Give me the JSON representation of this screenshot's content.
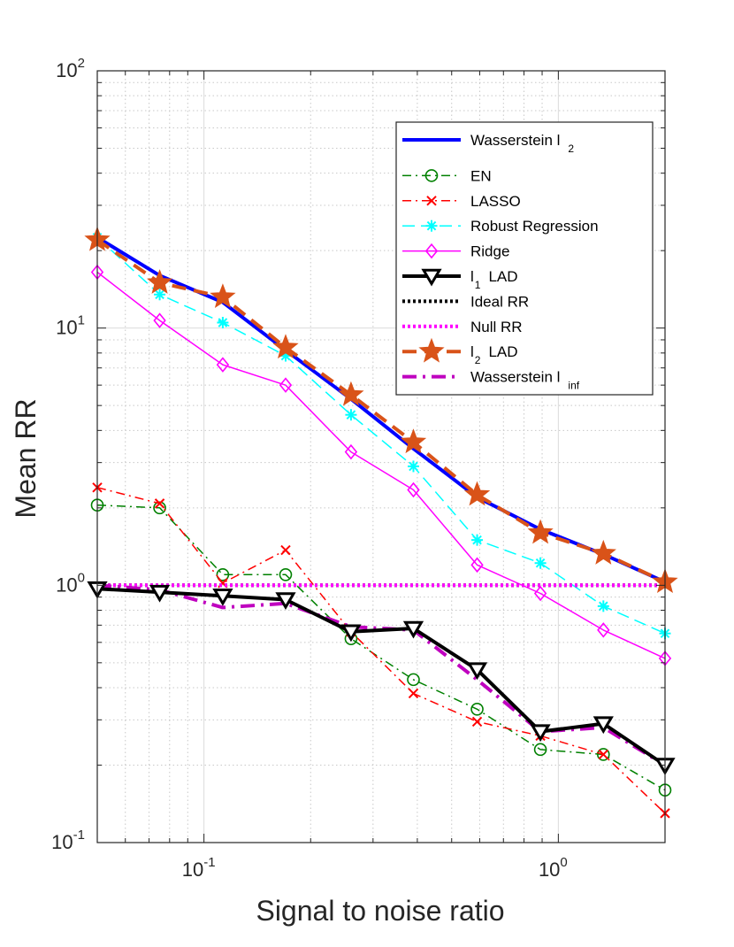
{
  "chart_data": {
    "type": "line",
    "xscale": "log",
    "yscale": "log",
    "xlabel": "Signal to noise ratio",
    "ylabel": "Mean RR",
    "xlim": [
      0.05,
      2.0
    ],
    "ylim": [
      0.1,
      100
    ],
    "grid": true,
    "minor_grid": true,
    "legend_position": "top-right",
    "x_ticks": [
      {
        "value": 0.1,
        "base": "10",
        "exp": "-1"
      },
      {
        "value": 1,
        "base": "10",
        "exp": "0"
      }
    ],
    "y_ticks": [
      {
        "value": 0.1,
        "base": "10",
        "exp": "-1"
      },
      {
        "value": 1,
        "base": "10",
        "exp": "0"
      },
      {
        "value": 10,
        "base": "10",
        "exp": "1"
      },
      {
        "value": 100,
        "base": "10",
        "exp": "2"
      }
    ],
    "x": [
      0.05,
      0.075,
      0.113,
      0.17,
      0.26,
      0.39,
      0.59,
      0.89,
      1.34,
      2.0
    ],
    "series": [
      {
        "name": "Wasserstein l",
        "sub": "2",
        "color": "#0000ff",
        "style": "solid",
        "marker": "none",
        "lineWidth": 4,
        "values": [
          22.5,
          16.0,
          12.6,
          8.2,
          5.3,
          3.4,
          2.2,
          1.65,
          1.32,
          1.03
        ]
      },
      {
        "name": "EN",
        "sub": "",
        "color": "#008000",
        "style": "dashdot",
        "marker": "circle",
        "lineWidth": 1.5,
        "values": [
          2.05,
          2.0,
          1.1,
          1.1,
          0.62,
          0.43,
          0.33,
          0.23,
          0.22,
          0.16
        ]
      },
      {
        "name": "LASSO",
        "sub": "",
        "color": "#ff0000",
        "style": "dashdot",
        "marker": "x",
        "lineWidth": 1.5,
        "values": [
          2.4,
          2.08,
          1.02,
          1.37,
          0.66,
          0.38,
          0.295,
          0.26,
          0.22,
          0.13
        ]
      },
      {
        "name": "Robust Regression",
        "sub": "",
        "color": "#00ffff",
        "style": "dashed",
        "marker": "asterisk",
        "lineWidth": 1.5,
        "values": [
          22.5,
          13.5,
          10.5,
          7.8,
          4.6,
          2.9,
          1.5,
          1.22,
          0.83,
          0.65
        ]
      },
      {
        "name": "Ridge",
        "sub": "",
        "color": "#ff00ff",
        "style": "solid",
        "marker": "diamond",
        "lineWidth": 1.5,
        "values": [
          16.5,
          10.7,
          7.2,
          6.0,
          3.3,
          2.35,
          1.2,
          0.93,
          0.67,
          0.52
        ]
      },
      {
        "name": "l",
        "sub": "1",
        "suffix": "LAD",
        "color": "#000000",
        "style": "solid",
        "marker": "triangle-down",
        "lineWidth": 4,
        "values": [
          0.97,
          0.94,
          0.91,
          0.88,
          0.66,
          0.68,
          0.47,
          0.27,
          0.29,
          0.2
        ]
      },
      {
        "name": "Ideal RR",
        "sub": "",
        "color": "#000000",
        "style": "dotted",
        "marker": "none",
        "lineWidth": 4,
        "values": [
          1.0,
          1.0,
          1.0,
          1.0,
          1.0,
          1.0,
          1.0,
          1.0,
          1.0,
          1.0
        ]
      },
      {
        "name": "Null RR",
        "sub": "",
        "color": "#ff00ff",
        "style": "dotted",
        "marker": "none",
        "lineWidth": 4,
        "values": [
          1.0,
          1.0,
          1.0,
          1.0,
          1.0,
          1.0,
          1.0,
          1.0,
          1.0,
          1.0
        ]
      },
      {
        "name": "l",
        "sub": "2",
        "suffix": "LAD",
        "color": "#d95319",
        "style": "dashed",
        "marker": "star",
        "lineWidth": 4,
        "values": [
          22.0,
          15.0,
          13.2,
          8.4,
          5.5,
          3.6,
          2.25,
          1.6,
          1.33,
          1.03
        ]
      },
      {
        "name": "Wasserstein l",
        "sub": "inf",
        "color": "#bf00bf",
        "style": "dashdot",
        "marker": "none",
        "lineWidth": 4,
        "values": [
          1.0,
          0.96,
          0.82,
          0.85,
          0.69,
          0.67,
          0.43,
          0.27,
          0.28,
          0.2
        ]
      }
    ]
  }
}
